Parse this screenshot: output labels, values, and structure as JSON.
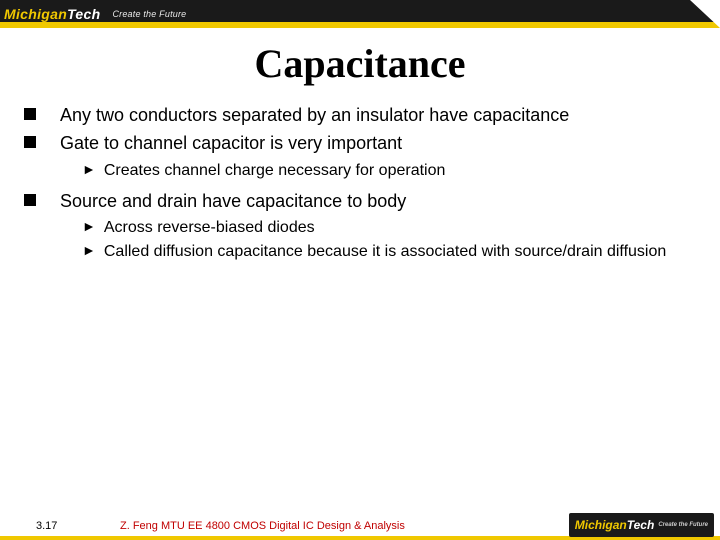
{
  "colors": {
    "accent_yellow": "#f0c800",
    "header_black": "#1a1a1a",
    "text_black": "#000000",
    "footer_red": "#c00000",
    "background": "#ffffff"
  },
  "header": {
    "logo_text_pre": "Michigan",
    "logo_text_post": "Tech",
    "tagline": "Create the Future"
  },
  "slide": {
    "title": "Capacitance",
    "title_font": "Times New Roman",
    "title_fontsize": 40,
    "body_fontsize": 18,
    "sub_fontsize": 16,
    "bullets": [
      {
        "text": "Any two conductors separated by an insulator have capacitance",
        "subs": []
      },
      {
        "text": "Gate to channel capacitor is very important",
        "subs": [
          {
            "text": "Creates channel charge necessary for operation"
          }
        ]
      },
      {
        "text": "Source and drain have capacitance to body",
        "subs": [
          {
            "text": "Across reverse-biased diodes"
          },
          {
            "text": "Called diffusion capacitance because it is associated with source/drain diffusion"
          }
        ]
      }
    ]
  },
  "footer": {
    "page": "3.17",
    "course": "Z. Feng  MTU EE 4800 CMOS Digital IC Design & Analysis",
    "logo_text_pre": "Michigan",
    "logo_text_post": "Tech",
    "logo_tagline": "Create the Future"
  }
}
